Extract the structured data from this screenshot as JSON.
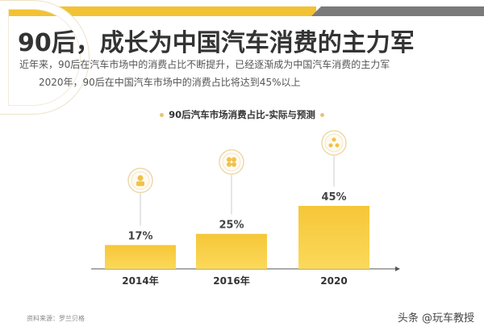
{
  "header": {
    "title": "90后，成长为中国汽车消费的主力军",
    "subtitle_1": "近年来，90后在汽车市场中的消费占比不断提升，已经逐渐成为中国汽车消费的主力军",
    "subtitle_2": "2020年，90后在中国汽车市场中的消费占比将达到45%以上"
  },
  "chart_data": {
    "type": "bar",
    "title": "90后汽车市场消费占比-实际与预测",
    "categories": [
      "2014年",
      "2016年",
      "2020"
    ],
    "values": [
      17,
      25,
      45
    ],
    "value_labels": [
      "17%",
      "25%",
      "45%"
    ],
    "icons": [
      "person-icon",
      "group-icon",
      "network-icon"
    ],
    "xlabel": "",
    "ylabel": "",
    "ylim": [
      0,
      50
    ],
    "bar_color": "#f7c93a"
  },
  "footer": {
    "source": "资料来源：罗兰贝格",
    "watermark": "头条 @玩车教授"
  }
}
